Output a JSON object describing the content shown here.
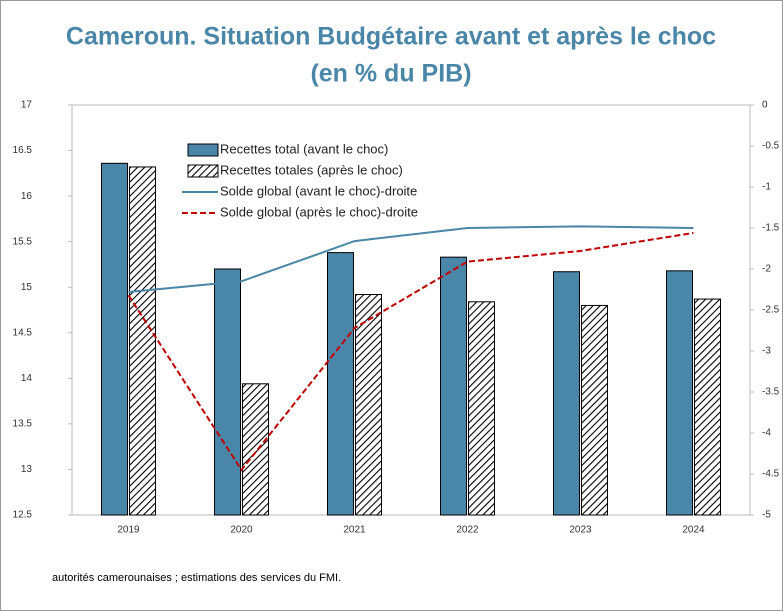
{
  "chart_data": {
    "type": "bar",
    "title": "Cameroun. Situation Budgétaire avant et après le choc",
    "subtitle": "(en % du PIB)",
    "categories": [
      "2019",
      "2020",
      "2021",
      "2022",
      "2023",
      "2024"
    ],
    "series": [
      {
        "name": "Recettes total (avant le choc)",
        "type": "bar",
        "color": "#4a86a8",
        "values": [
          16.36,
          15.2,
          15.38,
          15.33,
          15.17,
          15.18
        ]
      },
      {
        "name": "Recettes totales (après le choc)",
        "type": "bar",
        "pattern": "hatch",
        "color": "#000000",
        "values": [
          16.32,
          13.94,
          14.92,
          14.84,
          14.8,
          14.87
        ]
      },
      {
        "name": "Solde global (avant le choc)-droite",
        "type": "line",
        "axis": "y2",
        "color": "#4a86a8",
        "values": [
          -2.28,
          -2.15,
          -1.66,
          -1.5,
          -1.48,
          -1.5
        ]
      },
      {
        "name": "Solde global (après le choc)-droite",
        "type": "line",
        "axis": "y2",
        "dashed": true,
        "color": "#c00000",
        "values": [
          -2.32,
          -4.45,
          -2.72,
          -1.91,
          -1.78,
          -1.56
        ]
      }
    ],
    "ylim": [
      12.5,
      17
    ],
    "yticks": [
      12.5,
      13,
      13.5,
      14,
      14.5,
      15,
      15.5,
      16,
      16.5,
      17
    ],
    "y2lim": [
      -5,
      0
    ],
    "y2ticks": [
      -5,
      -4.5,
      -4,
      -3.5,
      -3,
      -2.5,
      -2,
      -1.5,
      -1,
      -0.5,
      0
    ],
    "legend": "top-left",
    "note": "autorités camerounaises ; estimations des services du FMI."
  }
}
